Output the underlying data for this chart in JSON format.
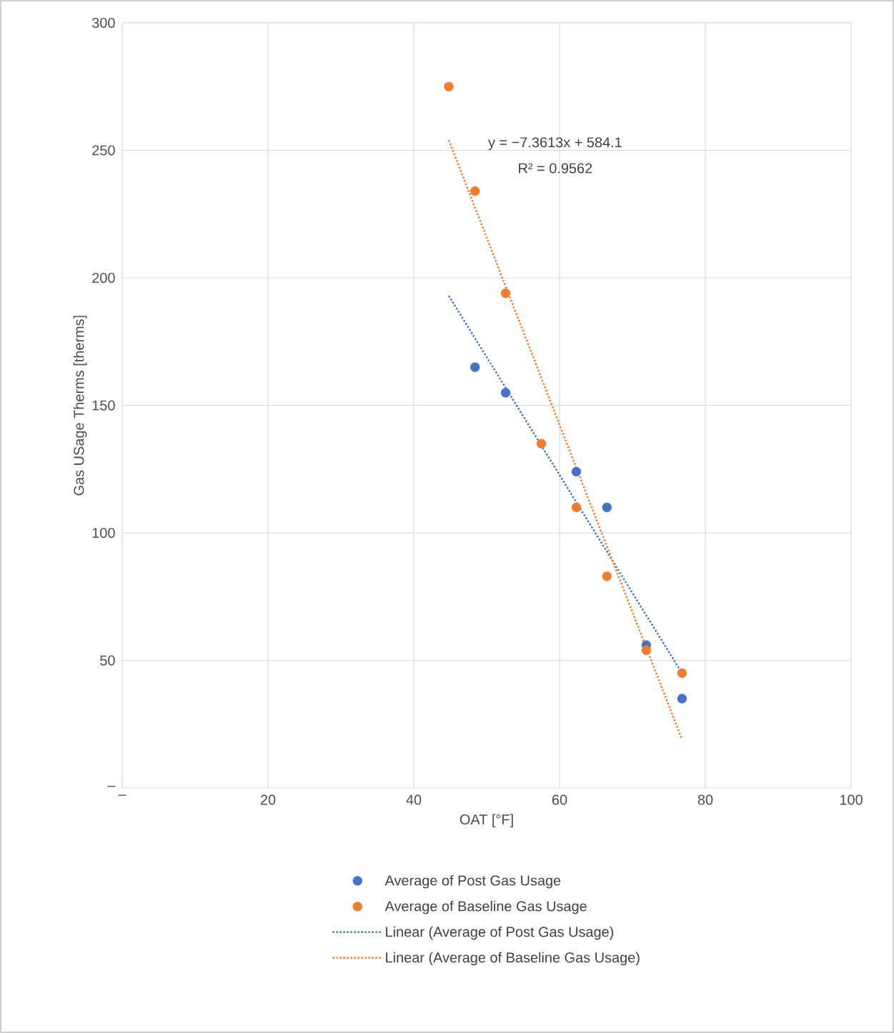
{
  "chart_data": {
    "type": "scatter",
    "xlabel": "OAT [°F]",
    "ylabel": "Gas USage Therms [therms]",
    "xlim": [
      0,
      100
    ],
    "ylim": [
      0,
      300
    ],
    "xticks": [
      {
        "value": 0,
        "label": "–"
      },
      20,
      40,
      60,
      80,
      100
    ],
    "yticks": [
      {
        "value": 0,
        "label": "–"
      },
      50,
      100,
      150,
      200,
      250,
      300
    ],
    "grid": true,
    "legend": "bottom",
    "series": [
      {
        "name": "Average of Post Gas Usage",
        "marker": "circle",
        "color": "#4472c4",
        "x": [
          48.4,
          52.6,
          57.5,
          62.3,
          66.5,
          71.9,
          76.8
        ],
        "values": [
          165,
          155,
          null,
          124,
          110,
          56,
          35
        ]
      },
      {
        "name": "Average of Baseline Gas Usage",
        "marker": "circle",
        "color": "#ed7d31",
        "x": [
          44.8,
          48.4,
          52.6,
          57.5,
          62.3,
          66.5,
          71.9,
          76.8
        ],
        "values": [
          275,
          234,
          194,
          135,
          110,
          83,
          54,
          45
        ]
      },
      {
        "name": "Linear (Average of Post Gas Usage)",
        "type": "line",
        "marker": "none",
        "line_style": "dotted",
        "color": "#4472c4",
        "x": [
          44.8,
          76.8
        ],
        "values": [
          193,
          45
        ]
      },
      {
        "name": "Linear (Average of Baseline Gas Usage)",
        "type": "line",
        "marker": "none",
        "line_style": "dotted",
        "color": "#ed7d31",
        "x": [
          44.8,
          76.8
        ],
        "values": [
          254,
          19
        ]
      }
    ],
    "annotations": [
      "y = −7.3613x + 584.1",
      "R² = 0.9562"
    ]
  }
}
